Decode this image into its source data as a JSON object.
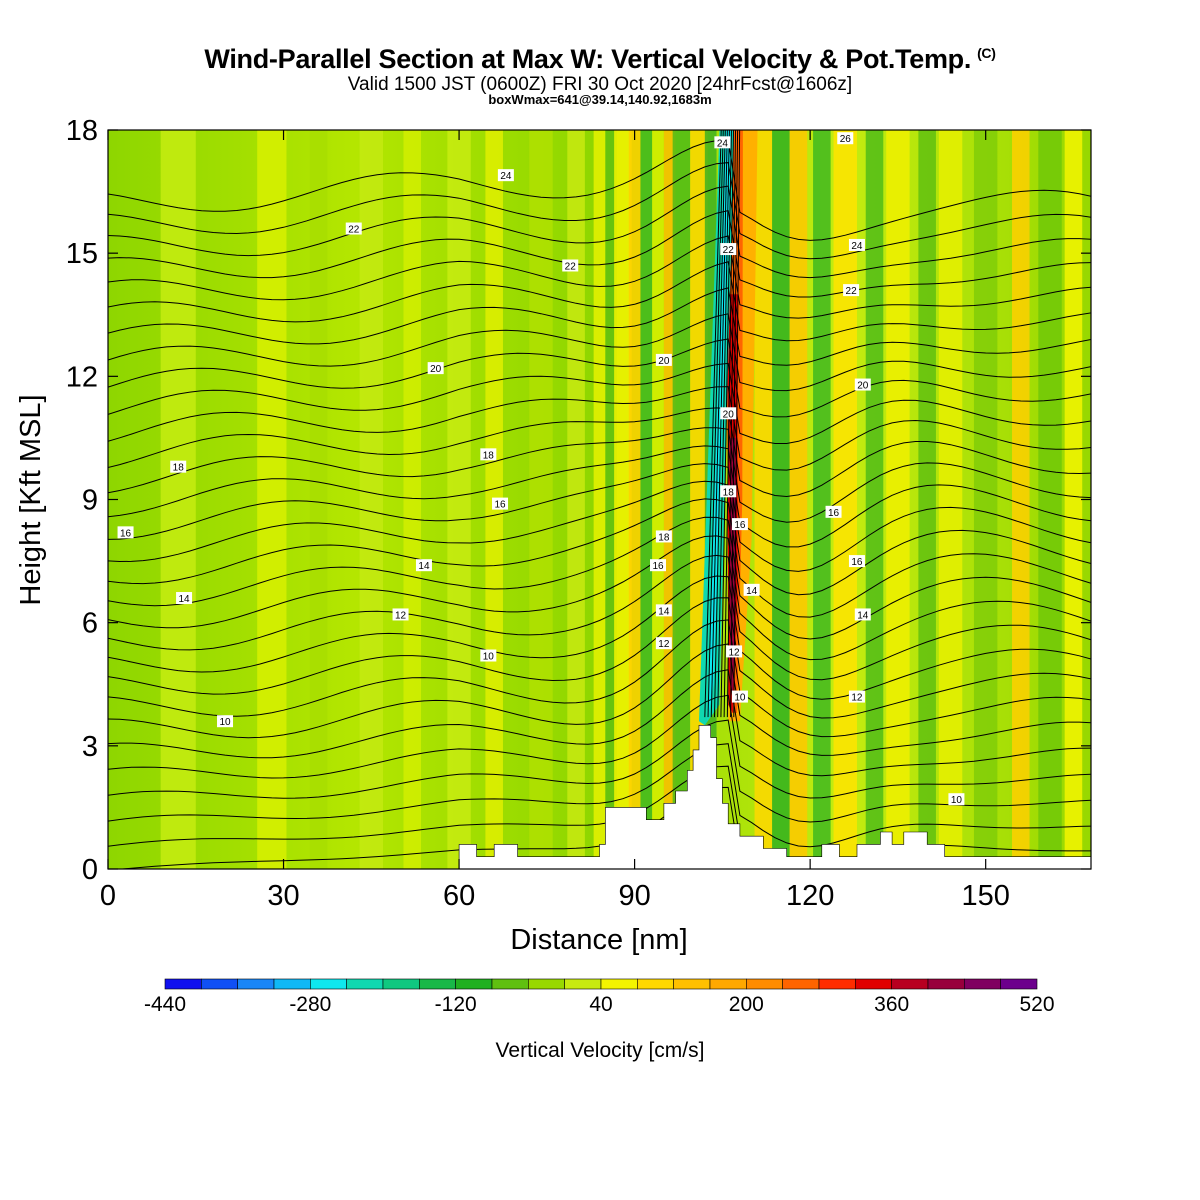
{
  "chart_data": {
    "type": "heatmap",
    "title": "Wind-Parallel Section at Max W: Vertical Velocity & Pot.Temp.",
    "copyright_mark": "(C)",
    "subtitle_main": "Valid 1500 JST",
    "subtitle_zulu": "(0600Z)",
    "subtitle_date": "FRI 30 Oct 2020",
    "subtitle_fcst": "[24hrFcst@1606z]",
    "subtitle_full": "Valid 1500 JST (0600Z) FRI 30 Oct 2020 [24hrFcst@1606z]",
    "note": "boxWmax=641@39.14,140.92,1683m",
    "xlabel": "Distance [nm]",
    "ylabel": "Height [Kft MSL]",
    "xlim": [
      0,
      168
    ],
    "ylim": [
      0,
      18
    ],
    "x_ticks": [
      "0",
      "30",
      "60",
      "90",
      "120",
      "150"
    ],
    "y_ticks": [
      "0",
      "3",
      "6",
      "9",
      "12",
      "15",
      "18"
    ],
    "colorbar": {
      "label": "Vertical Velocity [cm/s]",
      "tick_labels": [
        "-440",
        "-280",
        "-120",
        "40",
        "200",
        "360",
        "520"
      ],
      "levels": [
        -440,
        -400,
        -360,
        -320,
        -280,
        -240,
        -200,
        -160,
        -120,
        -80,
        -40,
        0,
        40,
        80,
        120,
        160,
        200,
        240,
        280,
        320,
        360,
        400,
        440,
        480,
        520
      ],
      "colors": [
        "#1010ee",
        "#1050f5",
        "#1a86f7",
        "#10b8f5",
        "#0ee8ee",
        "#10d8b0",
        "#10c880",
        "#18b848",
        "#20b020",
        "#60c010",
        "#98d800",
        "#c8ea10",
        "#f4f400",
        "#ffd800",
        "#ffc000",
        "#ffa800",
        "#ff8c00",
        "#ff6400",
        "#ff2c00",
        "#e00000",
        "#b80020",
        "#98003c",
        "#800060",
        "#6c008c"
      ]
    },
    "contour_variable": "potential temperature",
    "contour_labels": [
      "10",
      "12",
      "14",
      "16",
      "18",
      "20",
      "22",
      "24",
      "26"
    ],
    "grid": false
  }
}
